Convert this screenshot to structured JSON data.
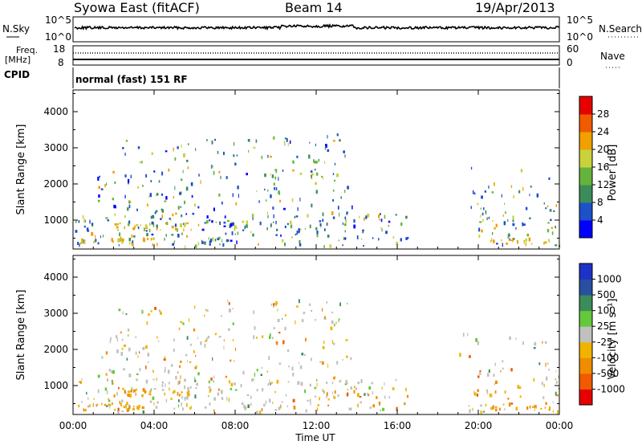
{
  "header": {
    "station": "Syowa East (fitACF)",
    "beam": "Beam 14",
    "date": "19/Apr/2013"
  },
  "panels": {
    "nsky_label": "N.Sky",
    "nsky_ticks": [
      "10^5",
      "10^0"
    ],
    "nsearch_label": "N.Search",
    "nsearch_ticks": [
      "10^5",
      "10^0"
    ],
    "freq_label_line1": "Freq.",
    "freq_label_line2": "[MHz]",
    "freq_ticks": [
      "18",
      "8"
    ],
    "nave_label": "Nave",
    "nave_ticks": [
      "60",
      "0"
    ],
    "cpid_label": "CPID",
    "cpid_text": "normal (fast) 151 RF"
  },
  "chart_data": [
    {
      "type": "heatmap",
      "name": "power-panel",
      "xlabel": "",
      "ylabel": "Slant Range [km]",
      "yticks": [
        1000,
        2000,
        3000,
        4000
      ],
      "ylim": [
        200,
        4600
      ],
      "xlim_hours": [
        0,
        24
      ],
      "colorbar": {
        "label": "Power [dB]",
        "ticks": [
          "4",
          "8",
          "12",
          "16",
          "20",
          "24",
          "28"
        ],
        "colors": [
          "#0000ff",
          "#1e50c8",
          "#3c8c5a",
          "#64b43c",
          "#c8d23c",
          "#f0a000",
          "#f05a00",
          "#e60000"
        ]
      },
      "note": "Backscatter echoes mostly between 00:00-16:30 UT and 19:30-24:00 UT, ranges 300-3400 km"
    },
    {
      "type": "heatmap",
      "name": "velocity-panel",
      "xlabel": "Time UT",
      "ylabel": "Slant Range [km]",
      "yticks": [
        1000,
        2000,
        3000,
        4000
      ],
      "ylim": [
        200,
        4600
      ],
      "xticks": [
        "00:00",
        "04:00",
        "08:00",
        "12:00",
        "16:00",
        "20:00",
        "00:00"
      ],
      "colorbar": {
        "label": "Velocity [m s⁻¹]",
        "ticks": [
          "1000",
          "500",
          "100",
          "25",
          "-25",
          "-100",
          "-500",
          "-1000"
        ],
        "colors": [
          "#1e32c8",
          "#2850a0",
          "#3c8c5a",
          "#64c83c",
          "#c0c0c0",
          "#f0b400",
          "#f08c00",
          "#f05a00",
          "#e60000"
        ]
      }
    }
  ]
}
